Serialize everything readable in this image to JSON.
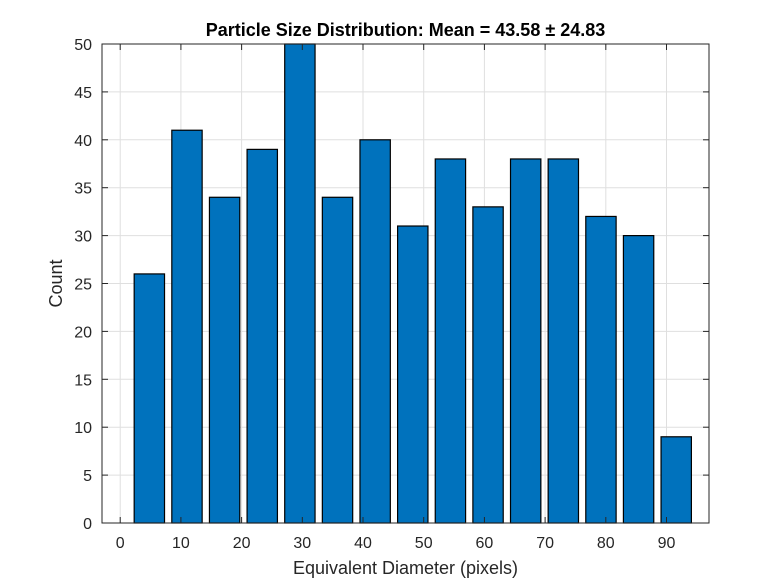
{
  "chart_data": {
    "type": "bar",
    "title": "Particle Size Distribution: Mean = 43.58 ± 24.83",
    "xlabel": "Equivalent Diameter (pixels)",
    "ylabel": "Count",
    "xlim": [
      -3,
      97
    ],
    "ylim": [
      0,
      50
    ],
    "xticks": [
      0,
      10,
      20,
      30,
      40,
      50,
      60,
      70,
      80,
      90
    ],
    "yticks": [
      0,
      5,
      10,
      15,
      20,
      25,
      30,
      35,
      40,
      45,
      50
    ],
    "bin_width": 6.2,
    "bar_width": 5,
    "x": [
      4.8,
      11.0,
      17.2,
      23.4,
      29.6,
      35.8,
      42.0,
      48.2,
      54.4,
      60.6,
      66.8,
      73.0,
      79.2,
      85.4,
      91.6
    ],
    "values": [
      26,
      41,
      34,
      39,
      50,
      34,
      40,
      31,
      38,
      33,
      38,
      38,
      32,
      30,
      9
    ],
    "grid": true,
    "colors": {
      "bar_fill": "#0072BD",
      "bar_edge": "#000000",
      "grid": "#dfdfdf",
      "axis": "#262626"
    }
  }
}
